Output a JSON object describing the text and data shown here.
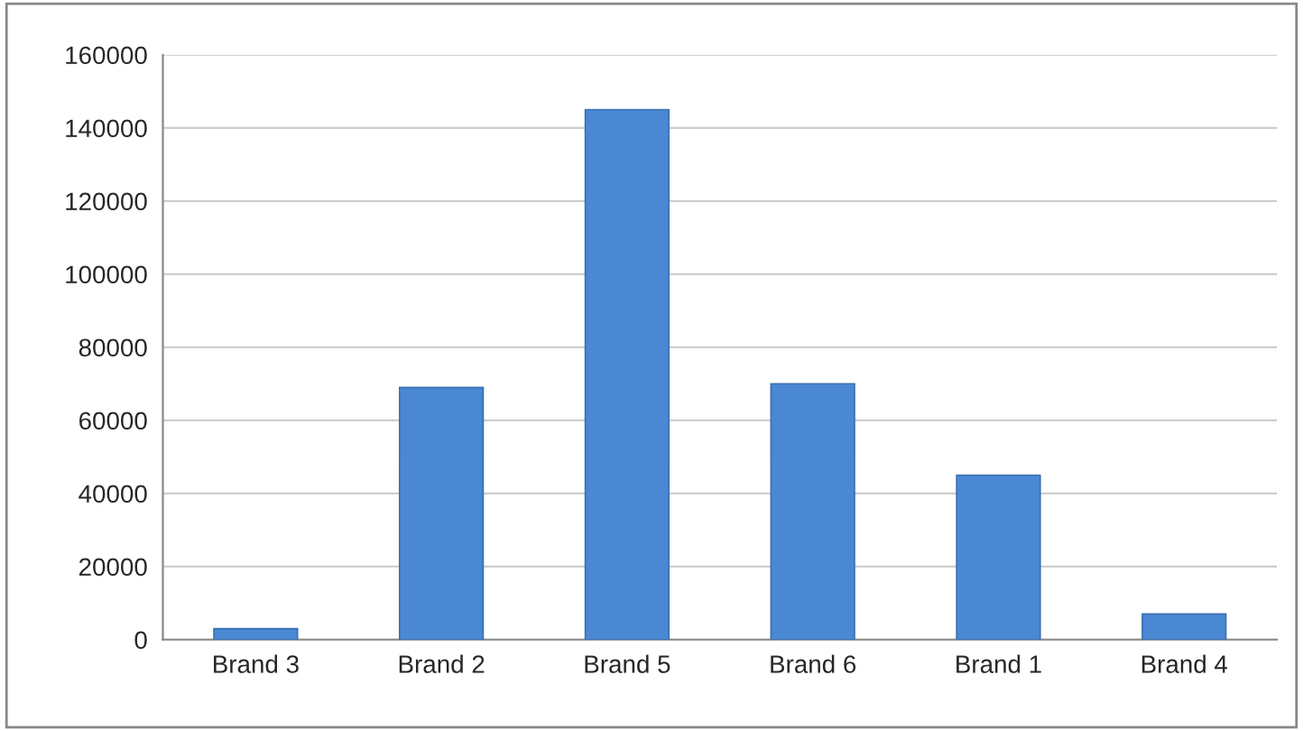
{
  "chart_data": {
    "type": "bar",
    "categories": [
      "Brand 3",
      "Brand 2",
      "Brand 5",
      "Brand 6",
      "Brand 1",
      "Brand 4"
    ],
    "values": [
      3000,
      69000,
      145000,
      70000,
      45000,
      7000
    ],
    "color": "#4a88d4",
    "ylim": [
      0,
      160000
    ],
    "yticks": [
      0,
      20000,
      40000,
      60000,
      80000,
      100000,
      120000,
      140000,
      160000
    ],
    "grid": "y"
  }
}
